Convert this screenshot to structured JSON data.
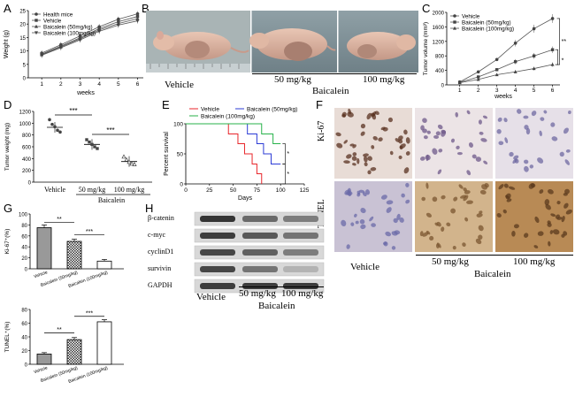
{
  "panel_letters": [
    "A",
    "B",
    "C",
    "D",
    "E",
    "F",
    "G",
    "H"
  ],
  "colors": {
    "vehicle": "#e8262b",
    "baicalein_50": "#2b3bd6",
    "baicalein_100": "#27b24a"
  },
  "panel_b": {
    "vehicle": "Vehicle",
    "dose_50": "50 mg/kg",
    "dose_100": "100 mg/kg",
    "group": "Baicalein"
  },
  "panel_f": {
    "row_ki67": "Ki-67",
    "row_tunel": "TUNEL",
    "vehicle": "Vehicle",
    "dose_50": "50 mg/kg",
    "dose_100": "100 mg/kg",
    "group": "Baicalein"
  },
  "panel_h": {
    "proteins": [
      "β-catenin",
      "c-myc",
      "cyclinD1",
      "survivin",
      "GAPDH"
    ],
    "vehicle": "Vehicle",
    "dose_50": "50 mg/kg",
    "dose_100": "100 mg/kg",
    "group": "Baicalein"
  },
  "chart_data": [
    {
      "id": "A",
      "type": "line",
      "ylabel": "Weight (g)",
      "xlabel": "weeks",
      "x": [
        1,
        2,
        3,
        4,
        5,
        6
      ],
      "xticks": [
        "1",
        "2",
        "3",
        "4",
        "5",
        "6"
      ],
      "yticks": [
        "0",
        "5",
        "10",
        "15",
        "20",
        "25"
      ],
      "ylim": [
        0,
        25
      ],
      "series": [
        {
          "name": "Health mice",
          "values": [
            9.2,
            12.3,
            15.6,
            19.0,
            21.8,
            23.8
          ]
        },
        {
          "name": "Vehicle",
          "values": [
            8.8,
            11.8,
            14.9,
            18.3,
            20.9,
            22.8
          ]
        },
        {
          "name": "Baicalein (50mg/kg)",
          "values": [
            8.6,
            11.5,
            14.5,
            17.8,
            20.2,
            22.0
          ]
        },
        {
          "name": "Baicalein (100mg/kg)",
          "values": [
            8.4,
            11.2,
            14.1,
            17.3,
            19.6,
            21.2
          ]
        }
      ]
    },
    {
      "id": "C",
      "type": "line",
      "ylabel": "Tumor volume (mm³)",
      "xlabel": "weeks",
      "x": [
        1,
        2,
        3,
        4,
        5,
        6
      ],
      "xticks": [
        "1",
        "2",
        "3",
        "4",
        "5",
        "6"
      ],
      "yticks": [
        "0",
        "400",
        "800",
        "1200",
        "1600",
        "2000"
      ],
      "ylim": [
        0,
        2000
      ],
      "series": [
        {
          "name": "Vehicle",
          "values": [
            80,
            360,
            700,
            1150,
            1550,
            1830
          ]
        },
        {
          "name": "Baicalein (50mg/kg)",
          "values": [
            70,
            220,
            420,
            640,
            800,
            970
          ]
        },
        {
          "name": "Baicalein (100mg/kg)",
          "values": [
            60,
            150,
            280,
            360,
            450,
            560
          ]
        }
      ],
      "significance": [
        "**",
        "*"
      ]
    },
    {
      "id": "D",
      "type": "scatter",
      "ylabel": "Tumor weight (mg)",
      "categories": [
        "Vehicle",
        "50 mg/kg",
        "100 mg/kg"
      ],
      "group_label": "Baicalein",
      "yticks": [
        "0",
        "200",
        "400",
        "600",
        "800",
        "1000",
        "1200"
      ],
      "ylim": [
        0,
        1200
      ],
      "means": [
        930,
        640,
        350
      ],
      "points": [
        [
          1060,
          980,
          940,
          880,
          850
        ],
        [
          720,
          680,
          640,
          600,
          570
        ],
        [
          430,
          380,
          340,
          310,
          300
        ]
      ],
      "significance": [
        "***",
        "***"
      ]
    },
    {
      "id": "E",
      "type": "line",
      "ylabel": "Percent survival",
      "xlabel": "Days",
      "xticks": [
        "0",
        "25",
        "50",
        "75",
        "100",
        "125"
      ],
      "yticks": [
        "0",
        "50",
        "100"
      ],
      "xlim": [
        0,
        125
      ],
      "ylim": [
        0,
        100
      ],
      "series": [
        {
          "name": "Vehicle",
          "steps": [
            [
              0,
              100
            ],
            [
              45,
              100
            ],
            [
              45,
              83
            ],
            [
              55,
              83
            ],
            [
              55,
              67
            ],
            [
              62,
              67
            ],
            [
              62,
              50
            ],
            [
              70,
              50
            ],
            [
              70,
              33
            ],
            [
              75,
              33
            ],
            [
              75,
              17
            ],
            [
              80,
              17
            ],
            [
              80,
              0
            ]
          ]
        },
        {
          "name": "Baicalein (50mg/kg)",
          "steps": [
            [
              0,
              100
            ],
            [
              65,
              100
            ],
            [
              65,
              83
            ],
            [
              75,
              83
            ],
            [
              75,
              67
            ],
            [
              82,
              67
            ],
            [
              82,
              50
            ],
            [
              90,
              50
            ],
            [
              90,
              33
            ],
            [
              100,
              33
            ]
          ]
        },
        {
          "name": "Baicalein (100mg/kg)",
          "steps": [
            [
              0,
              100
            ],
            [
              80,
              100
            ],
            [
              80,
              83
            ],
            [
              92,
              83
            ],
            [
              92,
              67
            ],
            [
              100,
              67
            ]
          ]
        }
      ],
      "significance": [
        "*",
        "*"
      ]
    },
    {
      "id": "G1",
      "type": "bar",
      "ylabel": "Ki-67⁺(%)",
      "categories": [
        "Vehicle",
        "Baicalein (50mg/kg)",
        "Baicalein (100mg/kg)"
      ],
      "values": [
        75,
        50,
        14
      ],
      "errors": [
        5,
        4,
        3
      ],
      "yticks": [
        "0",
        "20",
        "40",
        "60",
        "80",
        "100"
      ],
      "ylim": [
        0,
        100
      ],
      "significance": [
        "**",
        "***"
      ]
    },
    {
      "id": "G2",
      "type": "bar",
      "ylabel": "TUNEL⁺(%)",
      "categories": [
        "Vehicle",
        "Baicalein (50mg/kg)",
        "Baicalein (100mg/kg)"
      ],
      "values": [
        15,
        36,
        62
      ],
      "errors": [
        2,
        3,
        3
      ],
      "yticks": [
        "0",
        "20",
        "40",
        "60",
        "80"
      ],
      "ylim": [
        0,
        80
      ],
      "significance": [
        "**",
        "***"
      ]
    }
  ]
}
